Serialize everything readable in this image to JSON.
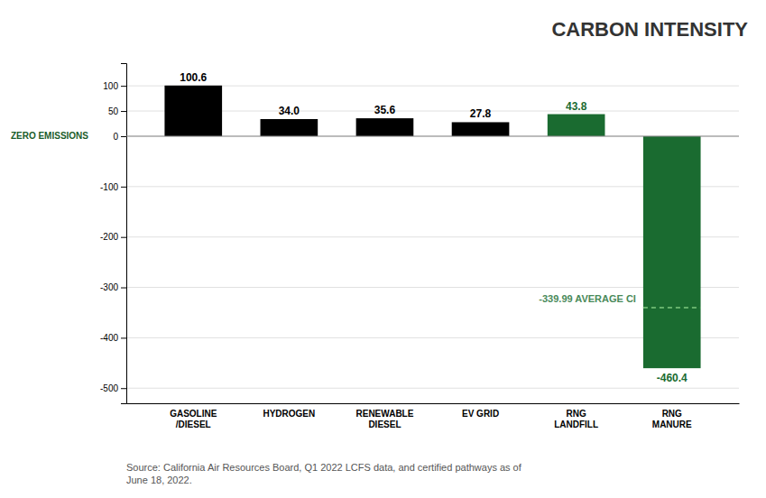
{
  "chart_data": {
    "type": "bar",
    "title": "CARBON INTENSITY",
    "categories": [
      "GASOLINE\n/DIESEL",
      "HYDROGEN",
      "RENEWABLE\nDIESEL",
      "EV GRID",
      "RNG\nLANDFILL",
      "RNG\nMANURE"
    ],
    "values": [
      100.6,
      34.0,
      35.6,
      27.8,
      43.8,
      -460.4
    ],
    "value_labels": [
      "100.6",
      "34.0",
      "35.6",
      "27.8",
      "43.8",
      "-460.4"
    ],
    "colors": [
      "#000000",
      "#000000",
      "#000000",
      "#000000",
      "#1a6b30",
      "#1a6b30"
    ],
    "data_labels": true,
    "ylim": [
      -530,
      145
    ],
    "yticks": [
      100,
      50,
      0,
      -100,
      -200,
      -300,
      -400,
      -500
    ],
    "grid": true,
    "annotations": [
      {
        "text": "ZERO EMISSIONS",
        "y": 0
      },
      {
        "text": "-339.99 AVERAGE CI",
        "y": -339.99,
        "x": "RNG\nMANURE"
      }
    ],
    "source": "Source: California Air Resources Board, Q1 2022 LCFS data, and certified pathways as of\nJune 18, 2022."
  }
}
